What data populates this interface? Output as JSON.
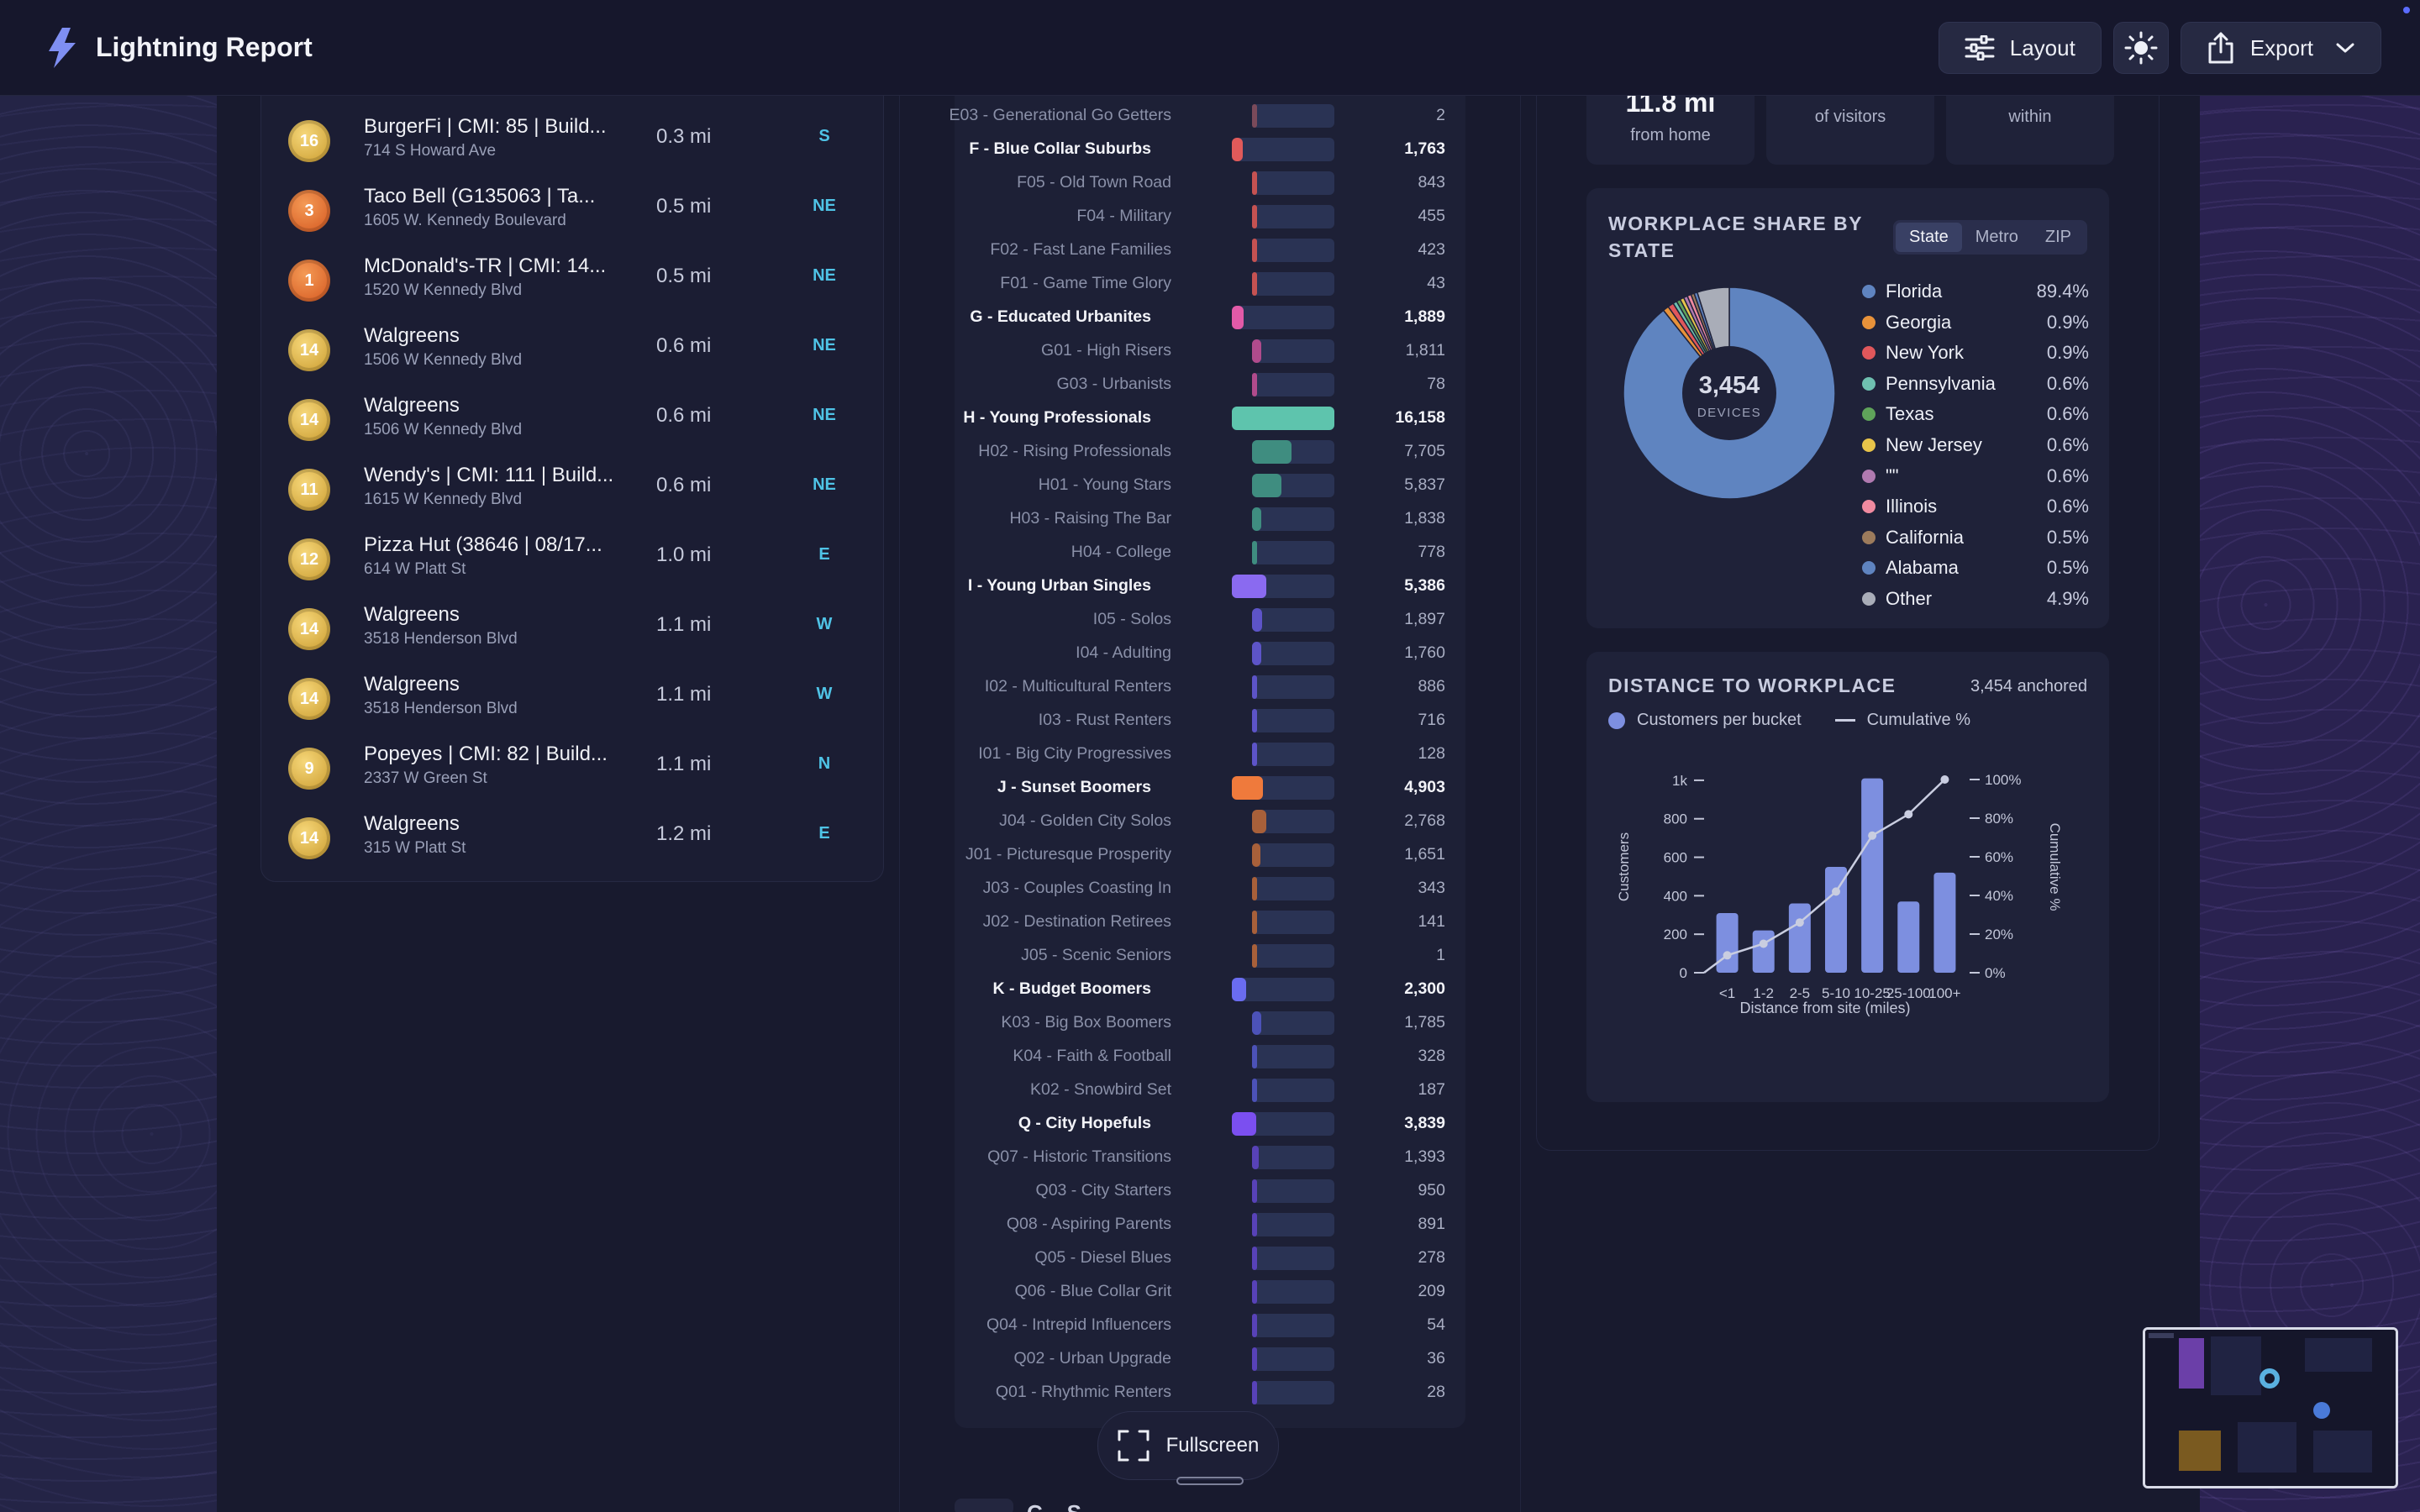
{
  "header": {
    "app_title": "Lightning Report",
    "layout_label": "Layout",
    "export_label": "Export"
  },
  "poi_list": [
    {
      "rank": "16",
      "badge": "gold",
      "name": "BurgerFi | CMI: 85 | Build...",
      "address": "714 S Howard Ave",
      "distance": "0.3 mi",
      "direction": "S"
    },
    {
      "rank": "3",
      "badge": "orange",
      "name": "Taco Bell (G135063 | Ta...",
      "address": "1605 W. Kennedy Boulevard",
      "distance": "0.5 mi",
      "direction": "NE"
    },
    {
      "rank": "1",
      "badge": "orange",
      "name": "McDonald's-TR | CMI: 14...",
      "address": "1520 W Kennedy Blvd",
      "distance": "0.5 mi",
      "direction": "NE"
    },
    {
      "rank": "14",
      "badge": "gold",
      "name": "Walgreens",
      "address": "1506 W Kennedy Blvd",
      "distance": "0.6 mi",
      "direction": "NE"
    },
    {
      "rank": "14",
      "badge": "gold",
      "name": "Walgreens",
      "address": "1506 W Kennedy Blvd",
      "distance": "0.6 mi",
      "direction": "NE"
    },
    {
      "rank": "11",
      "badge": "gold",
      "name": "Wendy's | CMI: 111 | Build...",
      "address": "1615 W Kennedy Blvd",
      "distance": "0.6 mi",
      "direction": "NE"
    },
    {
      "rank": "12",
      "badge": "gold",
      "name": "Pizza Hut (38646 | 08/17...",
      "address": "614 W Platt St",
      "distance": "1.0 mi",
      "direction": "E"
    },
    {
      "rank": "14",
      "badge": "gold",
      "name": "Walgreens",
      "address": "3518 Henderson Blvd",
      "distance": "1.1 mi",
      "direction": "W"
    },
    {
      "rank": "14",
      "badge": "gold",
      "name": "Walgreens",
      "address": "3518 Henderson Blvd",
      "distance": "1.1 mi",
      "direction": "W"
    },
    {
      "rank": "9",
      "badge": "gold",
      "name": "Popeyes | CMI: 82 | Build...",
      "address": "2337 W Green St",
      "distance": "1.1 mi",
      "direction": "N"
    },
    {
      "rank": "14",
      "badge": "gold",
      "name": "Walgreens",
      "address": "315 W Platt St",
      "distance": "1.2 mi",
      "direction": "E"
    }
  ],
  "segments": [
    {
      "label": "E03 - Generational Go Getters",
      "value": "2",
      "count": 2,
      "parent": false,
      "color": "#7a4a5a"
    },
    {
      "label": "F - Blue Collar Suburbs",
      "value": "1,763",
      "count": 1763,
      "parent": true,
      "color": "#e05a5a"
    },
    {
      "label": "F05 - Old Town Road",
      "value": "843",
      "count": 843,
      "parent": false,
      "color": "#c55252"
    },
    {
      "label": "F04 - Military",
      "value": "455",
      "count": 455,
      "parent": false,
      "color": "#c55252"
    },
    {
      "label": "F02 - Fast Lane Families",
      "value": "423",
      "count": 423,
      "parent": false,
      "color": "#c55252"
    },
    {
      "label": "F01 - Game Time Glory",
      "value": "43",
      "count": 43,
      "parent": false,
      "color": "#c55252"
    },
    {
      "label": "G - Educated Urbanites",
      "value": "1,889",
      "count": 1889,
      "parent": true,
      "color": "#e25aa8"
    },
    {
      "label": "G01 - High Risers",
      "value": "1,811",
      "count": 1811,
      "parent": false,
      "color": "#b04b8c"
    },
    {
      "label": "G03 - Urbanists",
      "value": "78",
      "count": 78,
      "parent": false,
      "color": "#b04b8c"
    },
    {
      "label": "H - Young Professionals",
      "value": "16,158",
      "count": 16158,
      "parent": true,
      "color": "#5ec4ad"
    },
    {
      "label": "H02 - Rising Professionals",
      "value": "7,705",
      "count": 7705,
      "parent": false,
      "color": "#3f8d80"
    },
    {
      "label": "H01 - Young Stars",
      "value": "5,837",
      "count": 5837,
      "parent": false,
      "color": "#3f8d80"
    },
    {
      "label": "H03 - Raising The Bar",
      "value": "1,838",
      "count": 1838,
      "parent": false,
      "color": "#3f8d80"
    },
    {
      "label": "H04 - College",
      "value": "778",
      "count": 778,
      "parent": false,
      "color": "#3f8d80"
    },
    {
      "label": "I - Young Urban Singles",
      "value": "5,386",
      "count": 5386,
      "parent": true,
      "color": "#8a6af0"
    },
    {
      "label": "I05 - Solos",
      "value": "1,897",
      "count": 1897,
      "parent": false,
      "color": "#5d54c8"
    },
    {
      "label": "I04 - Adulting",
      "value": "1,760",
      "count": 1760,
      "parent": false,
      "color": "#5d54c8"
    },
    {
      "label": "I02 - Multicultural Renters",
      "value": "886",
      "count": 886,
      "parent": false,
      "color": "#5d54c8"
    },
    {
      "label": "I03 - Rust Renters",
      "value": "716",
      "count": 716,
      "parent": false,
      "color": "#5d54c8"
    },
    {
      "label": "I01 - Big City Progressives",
      "value": "128",
      "count": 128,
      "parent": false,
      "color": "#5d54c8"
    },
    {
      "label": "J - Sunset Boomers",
      "value": "4,903",
      "count": 4903,
      "parent": true,
      "color": "#ef7a3c"
    },
    {
      "label": "J04 - Golden City Solos",
      "value": "2,768",
      "count": 2768,
      "parent": false,
      "color": "#a8603a"
    },
    {
      "label": "J01 - Picturesque Prosperity",
      "value": "1,651",
      "count": 1651,
      "parent": false,
      "color": "#a8603a"
    },
    {
      "label": "J03 - Couples Coasting In",
      "value": "343",
      "count": 343,
      "parent": false,
      "color": "#a8603a"
    },
    {
      "label": "J02 - Destination Retirees",
      "value": "141",
      "count": 141,
      "parent": false,
      "color": "#a8603a"
    },
    {
      "label": "J05 - Scenic Seniors",
      "value": "1",
      "count": 1,
      "parent": false,
      "color": "#a8603a"
    },
    {
      "label": "K - Budget Boomers",
      "value": "2,300",
      "count": 2300,
      "parent": true,
      "color": "#6a6cf0"
    },
    {
      "label": "K03 - Big Box Boomers",
      "value": "1,785",
      "count": 1785,
      "parent": false,
      "color": "#4c52b8"
    },
    {
      "label": "K04 - Faith & Football",
      "value": "328",
      "count": 328,
      "parent": false,
      "color": "#4c52b8"
    },
    {
      "label": "K02 - Snowbird Set",
      "value": "187",
      "count": 187,
      "parent": false,
      "color": "#4c52b8"
    },
    {
      "label": "Q - City Hopefuls",
      "value": "3,839",
      "count": 3839,
      "parent": true,
      "color": "#7b4ff0"
    },
    {
      "label": "Q07 - Historic Transitions",
      "value": "1,393",
      "count": 1393,
      "parent": false,
      "color": "#5842b8"
    },
    {
      "label": "Q03 - City Starters",
      "value": "950",
      "count": 950,
      "parent": false,
      "color": "#5842b8"
    },
    {
      "label": "Q08 - Aspiring Parents",
      "value": "891",
      "count": 891,
      "parent": false,
      "color": "#5842b8"
    },
    {
      "label": "Q05 - Diesel Blues",
      "value": "278",
      "count": 278,
      "parent": false,
      "color": "#5842b8"
    },
    {
      "label": "Q06 - Blue Collar Grit",
      "value": "209",
      "count": 209,
      "parent": false,
      "color": "#5842b8"
    },
    {
      "label": "Q04 - Intrepid Influencers",
      "value": "54",
      "count": 54,
      "parent": false,
      "color": "#5842b8"
    },
    {
      "label": "Q02 - Urban Upgrade",
      "value": "36",
      "count": 36,
      "parent": false,
      "color": "#5842b8"
    },
    {
      "label": "Q01 - Rhythmic Renters",
      "value": "28",
      "count": 28,
      "parent": false,
      "color": "#5842b8"
    }
  ],
  "segment_max": 16158,
  "fullscreen_label": "Fullscreen",
  "peek_section_title": "C... S...",
  "stats": [
    {
      "big": "11.8 mi",
      "small": "from home"
    },
    {
      "big": "",
      "small": "of visitors"
    },
    {
      "big": "",
      "small": "within"
    }
  ],
  "workplace_share": {
    "title_line1": "WORKPLACE SHARE BY",
    "title_line2": "STATE",
    "tabs": [
      "State",
      "Metro",
      "ZIP"
    ],
    "active_tab": "State",
    "center_value": "3,454",
    "center_label": "DEVICES",
    "legend": [
      {
        "name": "Florida",
        "pct": "89.4%",
        "share": 89.4,
        "color": "#5f84c0"
      },
      {
        "name": "Georgia",
        "pct": "0.9%",
        "share": 0.9,
        "color": "#e8923a"
      },
      {
        "name": "New York",
        "pct": "0.9%",
        "share": 0.9,
        "color": "#e0575b"
      },
      {
        "name": "Pennsylvania",
        "pct": "0.6%",
        "share": 0.6,
        "color": "#6fc0b0"
      },
      {
        "name": "Texas",
        "pct": "0.6%",
        "share": 0.6,
        "color": "#5fa35a"
      },
      {
        "name": "New Jersey",
        "pct": "0.6%",
        "share": 0.6,
        "color": "#e8c44a"
      },
      {
        "name": "\"\"",
        "pct": "0.6%",
        "share": 0.6,
        "color": "#b07ab0"
      },
      {
        "name": "Illinois",
        "pct": "0.6%",
        "share": 0.6,
        "color": "#f08aa0"
      },
      {
        "name": "California",
        "pct": "0.5%",
        "share": 0.5,
        "color": "#9c7b5c"
      },
      {
        "name": "Alabama",
        "pct": "0.5%",
        "share": 0.5,
        "color": "#5f84c0"
      },
      {
        "name": "Other",
        "pct": "4.9%",
        "share": 4.9,
        "color": "#a9adb8"
      }
    ]
  },
  "distance": {
    "title": "DISTANCE TO WORKPLACE",
    "anchored": "3,454 anchored",
    "legend_bars": "Customers per bucket",
    "legend_line": "Cumulative %"
  },
  "chart_data": {
    "type": "bar",
    "title": "DISTANCE TO WORKPLACE",
    "categories": [
      "<1",
      "1-2",
      "2-5",
      "5-10",
      "10-25",
      "25-100",
      "100+"
    ],
    "series": [
      {
        "name": "Customers per bucket",
        "values": [
          310,
          220,
          360,
          550,
          1010,
          370,
          520
        ],
        "axis": "left"
      },
      {
        "name": "Cumulative %",
        "values": [
          9,
          15,
          26,
          42,
          71,
          82,
          100
        ],
        "axis": "right",
        "type": "line"
      }
    ],
    "xlabel": "Distance from site (miles)",
    "ylabel": "Customers",
    "y2label": "Cumulative %",
    "ylim": [
      0,
      1100
    ],
    "yticks": [
      "0",
      "200",
      "400",
      "600",
      "800",
      "1k"
    ],
    "ytick_values": [
      0,
      200,
      400,
      600,
      800,
      1000
    ],
    "y2lim": [
      0,
      100
    ],
    "y2ticks": [
      "0%",
      "20%",
      "40%",
      "60%",
      "80%",
      "100%"
    ],
    "y2tick_values": [
      0,
      20,
      40,
      60,
      80,
      100
    ]
  }
}
